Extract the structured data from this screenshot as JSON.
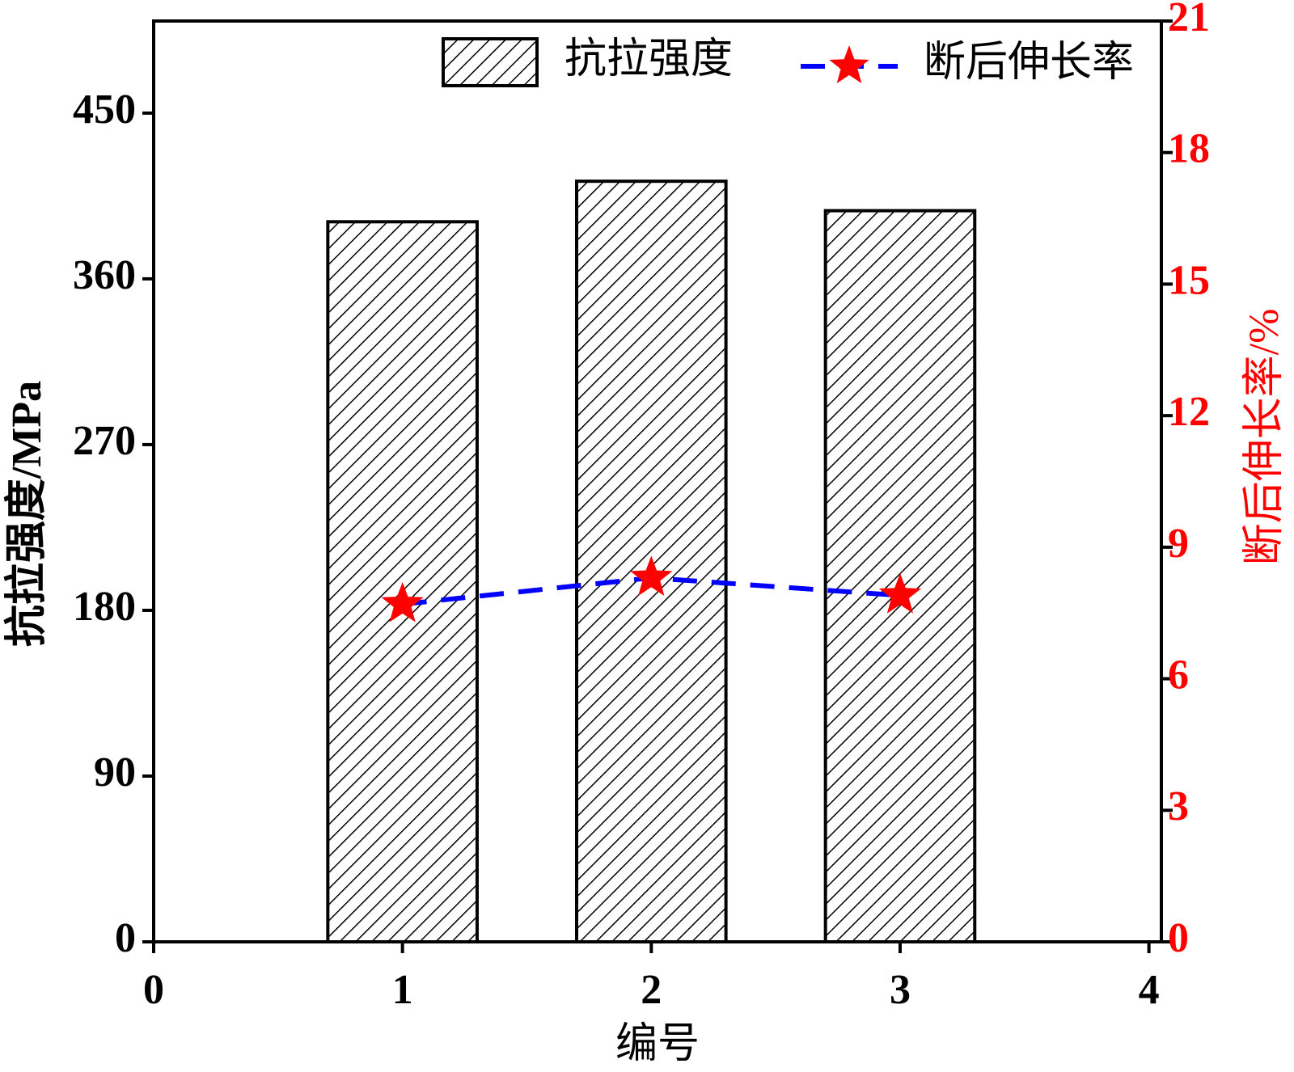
{
  "chart_data": {
    "type": "bar",
    "x_label": "编号",
    "y_label": "抗拉强度/MPa",
    "y2_label": "断后伸长率/%",
    "x": [
      1,
      2,
      3
    ],
    "xlim": [
      0,
      4.05
    ],
    "xticks": [
      0,
      1,
      2,
      3,
      4
    ],
    "ylim": [
      0,
      500
    ],
    "yticks": [
      0,
      90,
      180,
      270,
      360,
      450
    ],
    "y2lim": [
      0,
      21
    ],
    "y2ticks": [
      0,
      3,
      6,
      9,
      12,
      15,
      18,
      21
    ],
    "y2_color": "#ff0000",
    "bar_width": 0.6,
    "series": [
      {
        "name": "抗拉强度",
        "type": "bar",
        "color": "#000000",
        "hatch": "diagonal",
        "values": [
          391,
          413,
          397
        ]
      },
      {
        "name": "断后伸长率",
        "type": "line",
        "axis": "y2",
        "color": "#0000ff",
        "marker": "star",
        "marker_color": "#ff0000",
        "dashed": true,
        "values": [
          7.7,
          8.3,
          7.9
        ]
      }
    ],
    "legend": "top"
  }
}
